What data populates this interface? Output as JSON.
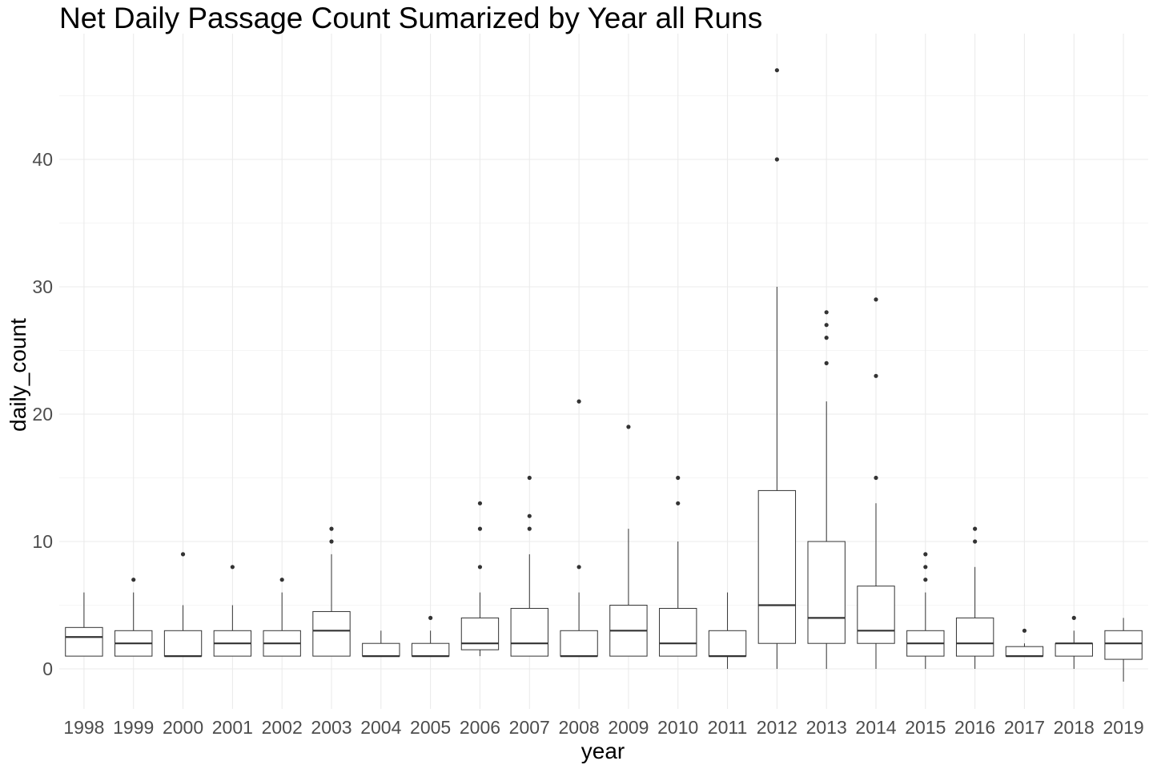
{
  "chart_data": {
    "type": "box",
    "title": "Net Daily Passage Count Sumarized by Year all Runs",
    "xlabel": "year",
    "ylabel": "daily_count",
    "ylim": [
      -3.3,
      49.2
    ],
    "yticks": [
      0,
      10,
      20,
      30,
      40
    ],
    "grid": true,
    "legend": "none",
    "colors": {
      "box_line": "#333333",
      "grid": "#ebebeb",
      "tick_text": "#4d4d4d"
    },
    "categories": [
      "1998",
      "1999",
      "2000",
      "2001",
      "2002",
      "2003",
      "2004",
      "2005",
      "2006",
      "2007",
      "2008",
      "2009",
      "2010",
      "2011",
      "2012",
      "2013",
      "2014",
      "2015",
      "2016",
      "2017",
      "2018",
      "2019"
    ],
    "boxes": [
      {
        "year": "1998",
        "whisker_low": 1,
        "q1": 1,
        "median": 2.5,
        "q3": 3.25,
        "whisker_high": 6,
        "outliers": []
      },
      {
        "year": "1999",
        "whisker_low": 1,
        "q1": 1,
        "median": 2,
        "q3": 3,
        "whisker_high": 6,
        "outliers": [
          7
        ]
      },
      {
        "year": "2000",
        "whisker_low": 1,
        "q1": 1,
        "median": 1,
        "q3": 3,
        "whisker_high": 5,
        "outliers": [
          9
        ]
      },
      {
        "year": "2001",
        "whisker_low": 1,
        "q1": 1,
        "median": 2,
        "q3": 3,
        "whisker_high": 5,
        "outliers": [
          8
        ]
      },
      {
        "year": "2002",
        "whisker_low": 1,
        "q1": 1,
        "median": 2,
        "q3": 3,
        "whisker_high": 6,
        "outliers": [
          7
        ]
      },
      {
        "year": "2003",
        "whisker_low": 1,
        "q1": 1,
        "median": 3,
        "q3": 4.5,
        "whisker_high": 9,
        "outliers": [
          10,
          11
        ]
      },
      {
        "year": "2004",
        "whisker_low": 1,
        "q1": 1,
        "median": 1,
        "q3": 2,
        "whisker_high": 3,
        "outliers": []
      },
      {
        "year": "2005",
        "whisker_low": 1,
        "q1": 1,
        "median": 1,
        "q3": 2,
        "whisker_high": 3,
        "outliers": [
          4
        ]
      },
      {
        "year": "2006",
        "whisker_low": 1,
        "q1": 1.5,
        "median": 2,
        "q3": 4,
        "whisker_high": 6,
        "outliers": [
          8,
          11,
          13
        ]
      },
      {
        "year": "2007",
        "whisker_low": 1,
        "q1": 1,
        "median": 2,
        "q3": 4.75,
        "whisker_high": 9,
        "outliers": [
          11,
          12,
          15
        ]
      },
      {
        "year": "2008",
        "whisker_low": 1,
        "q1": 1,
        "median": 1,
        "q3": 3,
        "whisker_high": 6,
        "outliers": [
          8,
          21
        ]
      },
      {
        "year": "2009",
        "whisker_low": 1,
        "q1": 1,
        "median": 3,
        "q3": 5,
        "whisker_high": 11,
        "outliers": [
          19
        ]
      },
      {
        "year": "2010",
        "whisker_low": 1,
        "q1": 1,
        "median": 2,
        "q3": 4.75,
        "whisker_high": 10,
        "outliers": [
          13,
          15
        ]
      },
      {
        "year": "2011",
        "whisker_low": 0,
        "q1": 1,
        "median": 1,
        "q3": 3,
        "whisker_high": 6,
        "outliers": []
      },
      {
        "year": "2012",
        "whisker_low": 0,
        "q1": 2,
        "median": 5,
        "q3": 14,
        "whisker_high": 30,
        "outliers": [
          40,
          47
        ]
      },
      {
        "year": "2013",
        "whisker_low": 0,
        "q1": 2,
        "median": 4,
        "q3": 10,
        "whisker_high": 21,
        "outliers": [
          24,
          26,
          27,
          28
        ]
      },
      {
        "year": "2014",
        "whisker_low": 0,
        "q1": 2,
        "median": 3,
        "q3": 6.5,
        "whisker_high": 13,
        "outliers": [
          15,
          23,
          29
        ]
      },
      {
        "year": "2015",
        "whisker_low": 0,
        "q1": 1,
        "median": 2,
        "q3": 3,
        "whisker_high": 6,
        "outliers": [
          7,
          8,
          9
        ]
      },
      {
        "year": "2016",
        "whisker_low": 0,
        "q1": 1,
        "median": 2,
        "q3": 4,
        "whisker_high": 8,
        "outliers": [
          10,
          11
        ]
      },
      {
        "year": "2017",
        "whisker_low": 1,
        "q1": 1,
        "median": 1,
        "q3": 1.75,
        "whisker_high": 2,
        "outliers": [
          3
        ]
      },
      {
        "year": "2018",
        "whisker_low": 0,
        "q1": 1,
        "median": 2,
        "q3": 2,
        "whisker_high": 3,
        "outliers": [
          4
        ]
      },
      {
        "year": "2019",
        "whisker_low": -1,
        "q1": 0.75,
        "median": 2,
        "q3": 3,
        "whisker_high": 4,
        "outliers": []
      }
    ]
  }
}
